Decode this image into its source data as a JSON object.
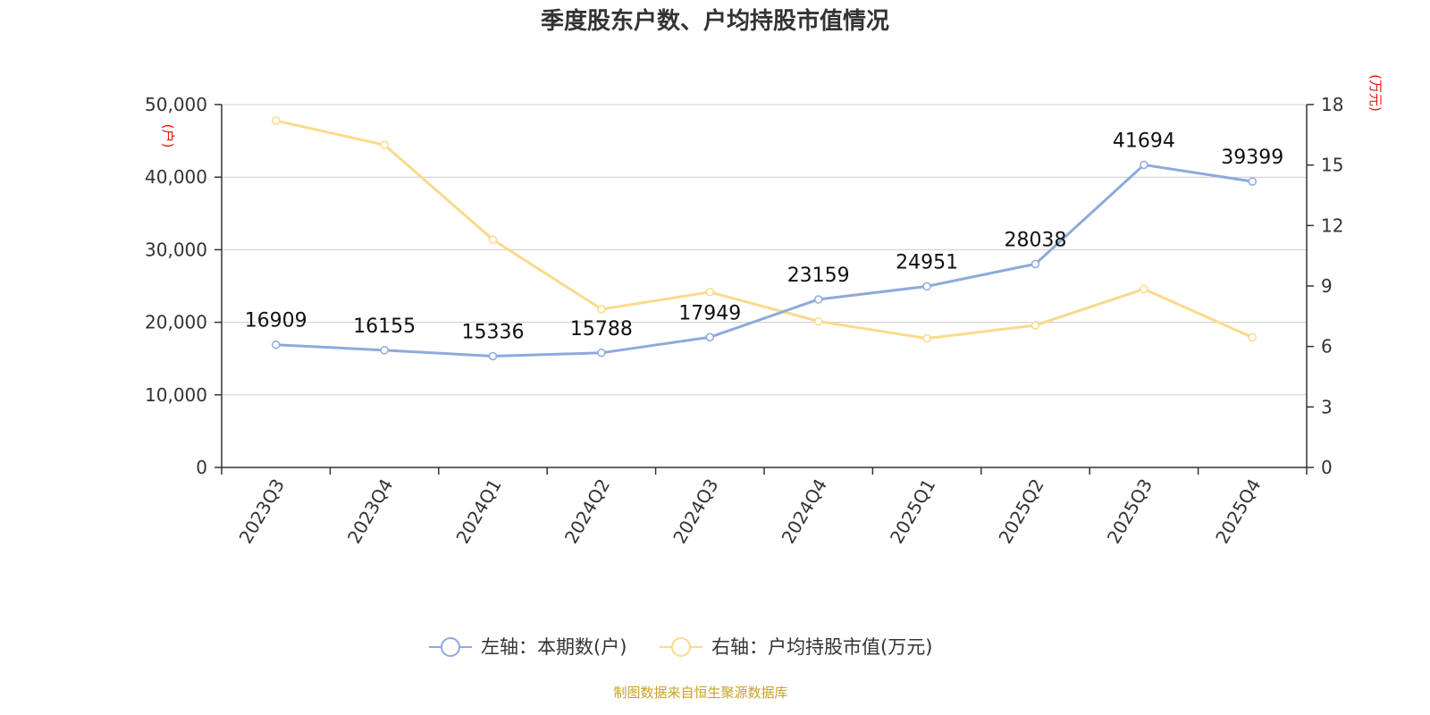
{
  "colors": {
    "households": "#8eaadb",
    "avg_value": "#fcd98c",
    "unit_label": "#e8120c",
    "source": "#c9a227",
    "grid": "#cccccc",
    "axis": "#333333"
  },
  "chart_data": {
    "type": "line",
    "title": "季度股东户数、户均持股市值情况",
    "categories": [
      "2023Q3",
      "2023Q4",
      "2024Q1",
      "2024Q2",
      "2024Q3",
      "2024Q4",
      "2025Q1",
      "2025Q2",
      "2025Q3",
      "2025Q4"
    ],
    "left_axis": {
      "unit": "(户)",
      "range": [
        0,
        50000
      ],
      "ticks": [
        "0",
        "10,000",
        "20,000",
        "30,000",
        "40,000",
        "50,000"
      ]
    },
    "right_axis": {
      "unit": "(万元)",
      "range": [
        0,
        18
      ],
      "ticks": [
        "0",
        "3",
        "6",
        "9",
        "12",
        "15",
        "18"
      ]
    },
    "series": [
      {
        "name": "左轴：本期数(户)",
        "axis": "left",
        "values": [
          16909,
          16155,
          15336,
          15788,
          17949,
          23159,
          24951,
          28038,
          41694,
          39399
        ],
        "data_labels": [
          "16909",
          "16155",
          "15336",
          "15788",
          "17949",
          "23159",
          "24951",
          "28038",
          "41694",
          "39399"
        ]
      },
      {
        "name": "右轴：户均持股市值(万元)",
        "axis": "right",
        "values": [
          17.2,
          16.0,
          11.3,
          7.85,
          8.7,
          7.25,
          6.4,
          7.05,
          8.85,
          6.45
        ]
      }
    ],
    "grid": true,
    "legend_position": "bottom"
  },
  "source": "制图数据来自恒生聚源数据库"
}
